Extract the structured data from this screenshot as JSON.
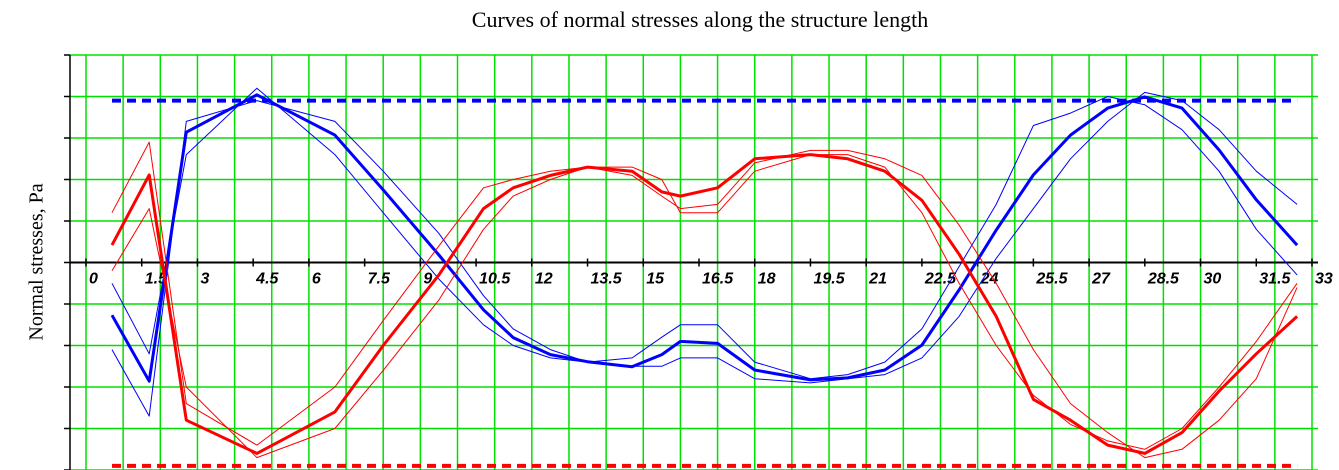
{
  "chart_data": {
    "type": "line",
    "title": "Curves of normal stresses along the structure length",
    "y_label": "Normal stresses, Pa",
    "xlim": [
      0,
      33
    ],
    "ylim": [
      -5,
      5
    ],
    "xticks": [
      0,
      1.5,
      3,
      4.5,
      6,
      7.5,
      9,
      10.5,
      12,
      13.5,
      15,
      16.5,
      18,
      19.5,
      21,
      22.5,
      24,
      25.5,
      27,
      28.5,
      30,
      31.5,
      33
    ],
    "yticks": [
      -5,
      -4,
      -3,
      -2,
      -1,
      0,
      1,
      2,
      3,
      4,
      5
    ],
    "xgrid": [
      0,
      1,
      2,
      3,
      4,
      5,
      6,
      7,
      8,
      9,
      10,
      11,
      12,
      13,
      14,
      15,
      16,
      17,
      18,
      19,
      20,
      21,
      22,
      23,
      24,
      25,
      26,
      27,
      28,
      29,
      30,
      31,
      32,
      33
    ],
    "grid": true,
    "grid_color": "#00e000",
    "series": [
      {
        "color": "#0000ff",
        "width": 3,
        "x": [
          0.7,
          1.7,
          2.7,
          4.6,
          6.7,
          8,
          9.5,
          10.7,
          11.5,
          12.5,
          13.5,
          14.7,
          15.5,
          16,
          17,
          18,
          19.5,
          20.5,
          21.5,
          22.5,
          23.5,
          24.5,
          25.5,
          26.5,
          27.5,
          28.5,
          29.5,
          30.5,
          31.5,
          32.6
        ],
        "values": [
          -1.27,
          -2.86,
          3.14,
          4.04,
          3.07,
          1.75,
          0.18,
          -1.14,
          -1.81,
          -2.22,
          -2.39,
          -2.51,
          -2.22,
          -1.9,
          -1.95,
          -2.59,
          -2.83,
          -2.78,
          -2.59,
          -1.99,
          -0.66,
          0.78,
          2.11,
          3.07,
          3.72,
          3.99,
          3.72,
          2.71,
          1.51,
          0.42
        ]
      },
      {
        "color": "#0000ff",
        "width": 1,
        "x": [
          0.7,
          1.7,
          2.7,
          4.6,
          6.7,
          8,
          9.5,
          10.7,
          11.5,
          12.5,
          13.5,
          14.7,
          15.5,
          16,
          17,
          18,
          19.5,
          20.5,
          21.5,
          22.5,
          23.5,
          24.5,
          25.5,
          26.5,
          27.5,
          28.5,
          29.5,
          30.5,
          31.5,
          32.6
        ],
        "values": [
          -0.5,
          -2.2,
          2.6,
          4.2,
          2.6,
          1.2,
          -0.4,
          -1.5,
          -2.0,
          -2.3,
          -2.4,
          -2.3,
          -1.8,
          -1.5,
          -1.5,
          -2.4,
          -2.8,
          -2.7,
          -2.4,
          -1.6,
          -0.1,
          1.4,
          3.3,
          3.6,
          4.0,
          3.8,
          3.2,
          2.2,
          0.8,
          -0.3
        ]
      },
      {
        "color": "#0000ff",
        "width": 1,
        "x": [
          0.7,
          1.7,
          2.7,
          4.6,
          6.7,
          8,
          9.5,
          10.7,
          11.5,
          12.5,
          13.5,
          14.7,
          15.5,
          16,
          17,
          18,
          19.5,
          20.5,
          21.5,
          22.5,
          23.5,
          24.5,
          25.5,
          26.5,
          27.5,
          28.5,
          29.5,
          30.5,
          31.5,
          32.6
        ],
        "values": [
          -2.1,
          -3.7,
          3.4,
          3.9,
          3.4,
          2.2,
          0.7,
          -0.8,
          -1.6,
          -2.1,
          -2.4,
          -2.5,
          -2.5,
          -2.3,
          -2.3,
          -2.8,
          -2.9,
          -2.8,
          -2.7,
          -2.3,
          -1.3,
          0.1,
          1.3,
          2.5,
          3.4,
          4.1,
          3.9,
          3.2,
          2.2,
          1.4
        ]
      },
      {
        "color": "#ff0000",
        "width": 3,
        "x": [
          0.7,
          1.7,
          2.7,
          4.6,
          6.7,
          8,
          9.5,
          10.7,
          11.5,
          12.5,
          13.5,
          14.7,
          15.5,
          16,
          17,
          18,
          19.5,
          20.5,
          21.5,
          22.5,
          23.5,
          24.5,
          25.5,
          26.5,
          27.5,
          28.5,
          29.5,
          30.5,
          31.5,
          32.6
        ],
        "values": [
          0.42,
          2.11,
          -3.8,
          -4.6,
          -3.6,
          -2.0,
          -0.3,
          1.3,
          1.8,
          2.1,
          2.3,
          2.2,
          1.7,
          1.6,
          1.8,
          2.5,
          2.6,
          2.5,
          2.2,
          1.5,
          0.2,
          -1.3,
          -3.3,
          -3.8,
          -4.4,
          -4.6,
          -4.1,
          -3.1,
          -2.2,
          -1.3
        ]
      },
      {
        "color": "#ff0000",
        "width": 1,
        "x": [
          0.7,
          1.7,
          2.7,
          4.6,
          6.7,
          8,
          9.5,
          10.7,
          11.5,
          12.5,
          13.5,
          14.7,
          15.5,
          16,
          17,
          18,
          19.5,
          20.5,
          21.5,
          22.5,
          23.5,
          24.5,
          25.5,
          26.5,
          27.5,
          28.5,
          29.5,
          30.5,
          31.5,
          32.6
        ],
        "values": [
          1.2,
          2.9,
          -3.4,
          -4.4,
          -3.0,
          -1.4,
          0.4,
          1.8,
          2.0,
          2.2,
          2.3,
          2.1,
          1.6,
          1.3,
          1.4,
          2.4,
          2.7,
          2.7,
          2.5,
          2.1,
          0.9,
          -0.5,
          -2.1,
          -3.4,
          -4.1,
          -4.7,
          -4.5,
          -3.8,
          -2.8,
          -0.6
        ]
      },
      {
        "color": "#ff0000",
        "width": 1,
        "x": [
          0.7,
          1.7,
          2.7,
          4.6,
          6.7,
          8,
          9.5,
          10.7,
          11.5,
          12.5,
          13.5,
          14.7,
          15.5,
          16,
          17,
          18,
          19.5,
          20.5,
          21.5,
          22.5,
          23.5,
          24.5,
          25.5,
          26.5,
          27.5,
          28.5,
          29.5,
          30.5,
          31.5,
          32.6
        ],
        "values": [
          -0.2,
          1.3,
          -3.0,
          -4.7,
          -4.0,
          -2.6,
          -0.9,
          0.8,
          1.6,
          2.0,
          2.3,
          2.3,
          2.0,
          1.2,
          1.2,
          2.2,
          2.6,
          2.6,
          2.3,
          1.2,
          -0.5,
          -2.0,
          -3.2,
          -3.9,
          -4.3,
          -4.5,
          -4.0,
          -3.0,
          -1.9,
          -0.5
        ]
      },
      {
        "color": "#0000ff",
        "width": 4,
        "dashed": true,
        "x": [
          0.7,
          32.6
        ],
        "values": [
          3.9,
          3.9
        ]
      },
      {
        "color": "#ff0000",
        "width": 4,
        "dashed": true,
        "x": [
          0.7,
          32.6
        ],
        "values": [
          -4.9,
          -4.9
        ]
      }
    ]
  }
}
